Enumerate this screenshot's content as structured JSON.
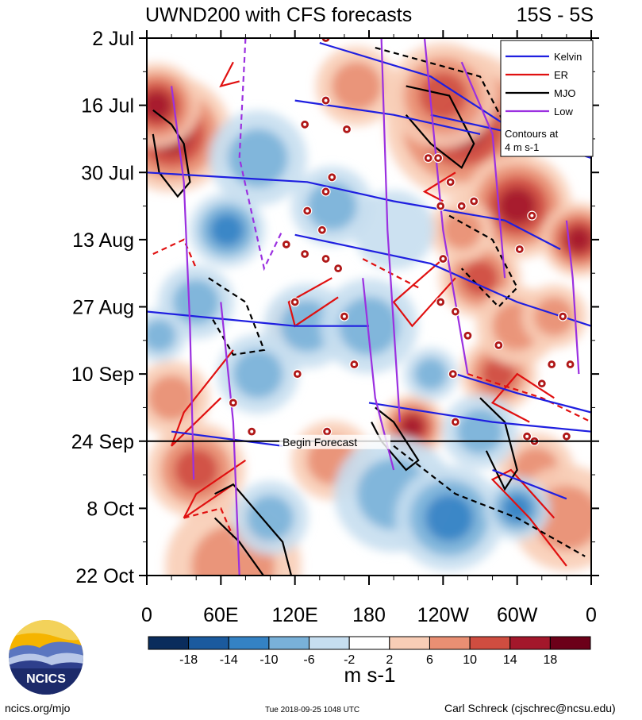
{
  "chart_data": {
    "type": "heatmap",
    "title": "UWND200 with CFS forecasts",
    "region": "15S - 5S",
    "y_labels": [
      "2 Jul",
      "16 Jul",
      "30 Jul",
      "13 Aug",
      "27 Aug",
      "10 Sep",
      "24 Sep",
      "8 Oct",
      "22 Oct"
    ],
    "x_labels": [
      "0",
      "60E",
      "120E",
      "180",
      "120W",
      "60W",
      "0"
    ],
    "x_range_deg": [
      0,
      360
    ],
    "y_range_days": [
      0,
      112
    ],
    "forecast_start_day": 84,
    "forecast_label": "Begin Forecast",
    "colorbar": {
      "ticks": [
        "-18",
        "-14",
        "-10",
        "-6",
        "-2",
        "2",
        "6",
        "10",
        "14",
        "18"
      ],
      "colors": [
        "#0a2c5c",
        "#1b5a9e",
        "#3482c4",
        "#79b1d9",
        "#c6def0",
        "#ffffff",
        "#f8cdb6",
        "#e98f73",
        "#cf4d40",
        "#a3172b",
        "#6c0019"
      ],
      "unit": "m s-1"
    },
    "legend": [
      {
        "name": "Kelvin",
        "color": "#1f1fe0"
      },
      {
        "name": "ER",
        "color": "#e01010"
      },
      {
        "name": "MJO",
        "color": "#000000"
      },
      {
        "name": "Low",
        "color": "#9b30e0"
      }
    ],
    "legend_note": [
      "Contours at",
      "4 m s-1"
    ],
    "features": {
      "mjo_contours": [
        {
          "pts": [
            [
              5,
              15
            ],
            [
              20,
              18
            ],
            [
              30,
              22
            ],
            [
              35,
              30
            ],
            [
              25,
              33
            ],
            [
              10,
              28
            ],
            [
              5,
              20
            ]
          ],
          "sign": 1
        },
        {
          "pts": [
            [
              55,
              95
            ],
            [
              70,
              93
            ],
            [
              110,
              105
            ],
            [
              120,
              115
            ],
            [
              100,
              114
            ],
            [
              75,
              105
            ],
            [
              55,
              100
            ]
          ],
          "sign": 1
        },
        {
          "pts": [
            [
              185,
              77
            ],
            [
              200,
              80
            ],
            [
              220,
              88
            ],
            [
              210,
              90
            ],
            [
              190,
              84
            ],
            [
              182,
              80
            ]
          ],
          "sign": 1
        },
        {
          "pts": [
            [
              210,
              10
            ],
            [
              245,
              12
            ],
            [
              265,
              22
            ],
            [
              255,
              27
            ],
            [
              230,
              22
            ],
            [
              210,
              16
            ]
          ],
          "sign": 1
        },
        {
          "pts": [
            [
              270,
              75
            ],
            [
              290,
              80
            ],
            [
              300,
              90
            ],
            [
              290,
              94
            ],
            [
              275,
              86
            ]
          ],
          "sign": 1
        },
        {
          "pts": [
            [
              185,
              2
            ],
            [
              270,
              8
            ],
            [
              290,
              18
            ]
          ],
          "sign": -1
        },
        {
          "pts": [
            [
              200,
              85
            ],
            [
              250,
              95
            ],
            [
              300,
              100
            ],
            [
              355,
              108
            ]
          ],
          "sign": -1
        },
        {
          "pts": [
            [
              50,
              50
            ],
            [
              80,
              55
            ],
            [
              95,
              65
            ],
            [
              70,
              66
            ],
            [
              52,
              58
            ]
          ],
          "sign": -1
        },
        {
          "pts": [
            [
              245,
              37
            ],
            [
              280,
              42
            ],
            [
              300,
              52
            ],
            [
              285,
              56
            ],
            [
              255,
              48
            ]
          ],
          "sign": -1
        }
      ],
      "kelvin_lines": [
        {
          "pts": [
            [
              0,
              28
            ],
            [
              130,
              30
            ],
            [
              200,
              34
            ],
            [
              290,
              38
            ],
            [
              335,
              44
            ]
          ]
        },
        {
          "pts": [
            [
              120,
              13
            ],
            [
              200,
              16
            ],
            [
              270,
              20
            ]
          ]
        },
        {
          "pts": [
            [
              120,
              41
            ],
            [
              230,
              47
            ],
            [
              300,
              55
            ],
            [
              360,
              60
            ]
          ]
        },
        {
          "pts": [
            [
              0,
              57
            ],
            [
              120,
              60
            ],
            [
              180,
              60
            ]
          ]
        },
        {
          "pts": [
            [
              180,
              76
            ],
            [
              280,
              80
            ],
            [
              360,
              82
            ]
          ]
        },
        {
          "pts": [
            [
              250,
              70
            ],
            [
              300,
              74
            ],
            [
              360,
              78
            ]
          ]
        },
        {
          "pts": [
            [
              140,
              1
            ],
            [
              230,
              8
            ],
            [
              290,
              18
            ]
          ]
        },
        {
          "pts": [
            [
              230,
              16
            ],
            [
              300,
              20
            ],
            [
              360,
              25
            ]
          ]
        },
        {
          "pts": [
            [
              280,
              90
            ],
            [
              340,
              96
            ]
          ]
        },
        {
          "pts": [
            [
              20,
              82
            ],
            [
              110,
              85
            ]
          ]
        }
      ],
      "er_contours": [
        {
          "pts": [
            [
              340,
              110
            ],
            [
              310,
              100
            ],
            [
              280,
              92
            ],
            [
              295,
              90
            ],
            [
              330,
              100
            ]
          ],
          "sign": 1
        },
        {
          "pts": [
            [
              330,
              75
            ],
            [
              300,
              70
            ],
            [
              280,
              76
            ],
            [
              310,
              80
            ]
          ],
          "sign": 1
        },
        {
          "pts": [
            [
              240,
              46
            ],
            [
              200,
              55
            ],
            [
              215,
              60
            ],
            [
              250,
              50
            ]
          ],
          "sign": 1
        },
        {
          "pts": [
            [
              150,
              50
            ],
            [
              115,
              55
            ],
            [
              120,
              60
            ],
            [
              155,
              54
            ]
          ],
          "sign": 1
        },
        {
          "pts": [
            [
              70,
              65
            ],
            [
              30,
              78
            ],
            [
              20,
              85
            ],
            [
              60,
              75
            ]
          ],
          "sign": 1
        },
        {
          "pts": [
            [
              80,
              88
            ],
            [
              40,
              95
            ],
            [
              30,
              100
            ],
            [
              70,
              93
            ]
          ],
          "sign": 1
        },
        {
          "pts": [
            [
              70,
              5
            ],
            [
              60,
              10
            ],
            [
              75,
              9
            ]
          ],
          "sign": 1
        },
        {
          "pts": [
            [
              250,
              28
            ],
            [
              225,
              32
            ],
            [
              240,
              34
            ]
          ],
          "sign": 1
        },
        {
          "pts": [
            [
              5,
              45
            ],
            [
              30,
              42
            ],
            [
              40,
              48
            ]
          ],
          "sign": -1
        },
        {
          "pts": [
            [
              30,
              100
            ],
            [
              60,
              98
            ],
            [
              70,
              104
            ]
          ],
          "sign": -1
        },
        {
          "pts": [
            [
              260,
              70
            ],
            [
              320,
              75
            ],
            [
              360,
              80
            ]
          ],
          "sign": -1
        },
        {
          "pts": [
            [
              175,
              46
            ],
            [
              220,
              52
            ]
          ],
          "sign": -1
        }
      ],
      "low_lines": [
        {
          "pts": [
            [
              20,
              10
            ],
            [
              30,
              30
            ],
            [
              35,
              60
            ],
            [
              38,
              92
            ]
          ],
          "dash": false
        },
        {
          "pts": [
            [
              60,
              55
            ],
            [
              70,
              80
            ],
            [
              75,
              112
            ]
          ],
          "dash": false
        },
        {
          "pts": [
            [
              80,
              0
            ],
            [
              75,
              25
            ],
            [
              95,
              48
            ],
            [
              110,
              40
            ]
          ],
          "dash": true
        },
        {
          "pts": [
            [
              190,
              0
            ],
            [
              195,
              40
            ],
            [
              205,
              80
            ]
          ],
          "dash": false
        },
        {
          "pts": [
            [
              225,
              0
            ],
            [
              240,
              40
            ],
            [
              260,
              70
            ]
          ],
          "dash": false
        },
        {
          "pts": [
            [
              255,
              5
            ],
            [
              280,
              20
            ],
            [
              290,
              50
            ]
          ],
          "dash": false
        },
        {
          "pts": [
            [
              175,
              50
            ],
            [
              185,
              75
            ],
            [
              200,
              90
            ]
          ],
          "dash": false
        },
        {
          "pts": [
            [
              340,
              38
            ],
            [
              345,
              50
            ],
            [
              350,
              70
            ]
          ],
          "dash": false
        }
      ],
      "blobs": [
        {
          "x": 20,
          "y": 20,
          "r": 22,
          "v": 18
        },
        {
          "x": 8,
          "y": 14,
          "r": 16,
          "v": 16
        },
        {
          "x": 255,
          "y": 18,
          "r": 28,
          "v": 15
        },
        {
          "x": 240,
          "y": 12,
          "r": 20,
          "v": 12
        },
        {
          "x": 300,
          "y": 35,
          "r": 20,
          "v": 14
        },
        {
          "x": 350,
          "y": 42,
          "r": 14,
          "v": 16
        },
        {
          "x": 270,
          "y": 50,
          "r": 15,
          "v": 12
        },
        {
          "x": 215,
          "y": 81,
          "r": 12,
          "v": 18
        },
        {
          "x": 285,
          "y": 70,
          "r": 14,
          "v": 10
        },
        {
          "x": 40,
          "y": 90,
          "r": 18,
          "v": 12
        },
        {
          "x": 70,
          "y": 110,
          "r": 25,
          "v": 9
        },
        {
          "x": 120,
          "y": 60,
          "r": 10,
          "v": 8
        },
        {
          "x": 20,
          "y": 75,
          "r": 14,
          "v": 8
        },
        {
          "x": 315,
          "y": 90,
          "r": 14,
          "v": 6
        },
        {
          "x": 150,
          "y": 88,
          "r": 15,
          "v": 6
        },
        {
          "x": 340,
          "y": 100,
          "r": 20,
          "v": 7
        },
        {
          "x": 170,
          "y": 10,
          "r": 15,
          "v": 6
        },
        {
          "x": 300,
          "y": 60,
          "r": 15,
          "v": 8
        },
        {
          "x": 330,
          "y": 58,
          "r": 12,
          "v": 9
        },
        {
          "x": 255,
          "y": 40,
          "r": 12,
          "v": 6
        },
        {
          "x": 65,
          "y": 40,
          "r": 14,
          "v": -12
        },
        {
          "x": 90,
          "y": 25,
          "r": 18,
          "v": -9
        },
        {
          "x": 130,
          "y": 60,
          "r": 16,
          "v": -8
        },
        {
          "x": 200,
          "y": 95,
          "r": 22,
          "v": -8
        },
        {
          "x": 245,
          "y": 100,
          "r": 20,
          "v": -10
        },
        {
          "x": 300,
          "y": 98,
          "r": 12,
          "v": -10
        },
        {
          "x": 90,
          "y": 70,
          "r": 15,
          "v": -6
        },
        {
          "x": 40,
          "y": 55,
          "r": 14,
          "v": -8
        },
        {
          "x": 180,
          "y": 60,
          "r": 18,
          "v": -6
        },
        {
          "x": 320,
          "y": 10,
          "r": 12,
          "v": -7
        },
        {
          "x": 230,
          "y": 70,
          "r": 10,
          "v": -6
        },
        {
          "x": 150,
          "y": 35,
          "r": 15,
          "v": -6
        },
        {
          "x": 200,
          "y": 40,
          "r": 15,
          "v": -5
        },
        {
          "x": 100,
          "y": 100,
          "r": 14,
          "v": -6
        },
        {
          "x": 270,
          "y": 82,
          "r": 14,
          "v": -6
        },
        {
          "x": 10,
          "y": 62,
          "r": 10,
          "v": -7
        }
      ],
      "storms": [
        {
          "x": 145,
          "y": 13
        },
        {
          "x": 128,
          "y": 18
        },
        {
          "x": 162,
          "y": 19
        },
        {
          "x": 150,
          "y": 29
        },
        {
          "x": 145,
          "y": 32
        },
        {
          "x": 130,
          "y": 36
        },
        {
          "x": 142,
          "y": 40
        },
        {
          "x": 113,
          "y": 43
        },
        {
          "x": 128,
          "y": 45
        },
        {
          "x": 145,
          "y": 46
        },
        {
          "x": 155,
          "y": 48
        },
        {
          "x": 120,
          "y": 55
        },
        {
          "x": 160,
          "y": 58
        },
        {
          "x": 168,
          "y": 68
        },
        {
          "x": 122,
          "y": 70
        },
        {
          "x": 70,
          "y": 76
        },
        {
          "x": 85,
          "y": 82
        },
        {
          "x": 146,
          "y": 82
        },
        {
          "x": 228,
          "y": 25
        },
        {
          "x": 236,
          "y": 25
        },
        {
          "x": 246,
          "y": 30
        },
        {
          "x": 238,
          "y": 35
        },
        {
          "x": 255,
          "y": 35
        },
        {
          "x": 265,
          "y": 34
        },
        {
          "x": 312,
          "y": 37
        },
        {
          "x": 302,
          "y": 44
        },
        {
          "x": 240,
          "y": 46
        },
        {
          "x": 238,
          "y": 55
        },
        {
          "x": 250,
          "y": 57
        },
        {
          "x": 260,
          "y": 62
        },
        {
          "x": 285,
          "y": 64
        },
        {
          "x": 248,
          "y": 70
        },
        {
          "x": 328,
          "y": 68
        },
        {
          "x": 343,
          "y": 68
        },
        {
          "x": 320,
          "y": 72
        },
        {
          "x": 337,
          "y": 58
        },
        {
          "x": 250,
          "y": 80
        },
        {
          "x": 308,
          "y": 83
        },
        {
          "x": 314,
          "y": 84
        },
        {
          "x": 340,
          "y": 83
        },
        {
          "x": 145,
          "y": 0
        }
      ]
    }
  },
  "footer": {
    "logo_text": "NCICS",
    "site": "ncics.org/mjo",
    "timestamp": "Tue 2018-09-25 1048 UTC",
    "author": "Carl Schreck (cjschrec@ncsu.edu)"
  }
}
